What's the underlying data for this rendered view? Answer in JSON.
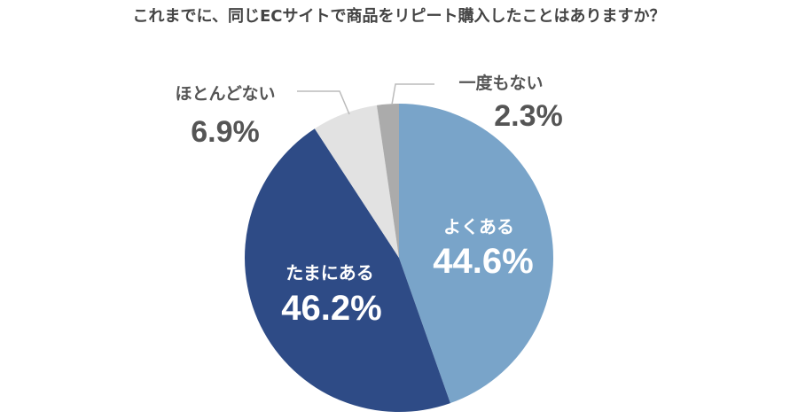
{
  "chart_data": {
    "type": "pie",
    "title": "これまでに、同じECサイトで商品をリピート購入したことはありますか？",
    "slices": [
      {
        "label": "よくある",
        "value": 44.6,
        "display": "44.6%",
        "color": "#79a4c9",
        "placement": "inside"
      },
      {
        "label": "たまにある",
        "value": 46.2,
        "display": "46.2%",
        "color": "#2e4b86",
        "placement": "inside"
      },
      {
        "label": "ほとんどない",
        "value": 6.9,
        "display": "6.9%",
        "color": "#e2e2e2",
        "placement": "outside-left"
      },
      {
        "label": "一度もない",
        "value": 2.3,
        "display": "2.3%",
        "color": "#ababab",
        "placement": "outside-right"
      }
    ],
    "start": "top",
    "direction": "clockwise"
  }
}
